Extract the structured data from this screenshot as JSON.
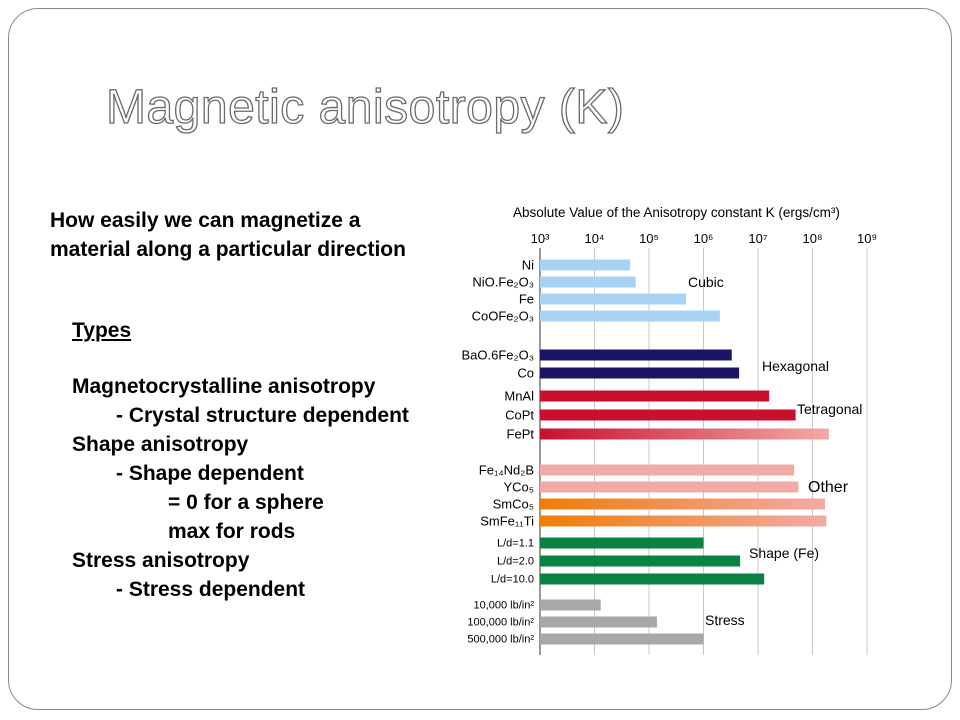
{
  "slide": {
    "title": "Magnetic anisotropy (K)",
    "intro_lines": [
      "How easily we can magnetize a",
      "material along a particular direction"
    ],
    "types_heading": "Types",
    "types": [
      {
        "name": "Magnetocrystalline anisotropy",
        "details": [
          "- Crystal structure dependent"
        ]
      },
      {
        "name": "Shape anisotropy",
        "details": [
          "- Shape dependent",
          "= 0 for a sphere",
          "max for rods"
        ]
      },
      {
        "name": "Stress anisotropy",
        "details": [
          "- Stress dependent"
        ]
      }
    ]
  },
  "chart_data": {
    "type": "bar",
    "orientation": "horizontal",
    "title": "Absolute Value of the Anisotropy constant K (ergs/cm³)",
    "x_scale": "log",
    "xlim": [
      1000,
      1000000000
    ],
    "x_ticks": [
      {
        "value": 1000,
        "label": "10³"
      },
      {
        "value": 10000,
        "label": "10⁴"
      },
      {
        "value": 100000,
        "label": "10⁵"
      },
      {
        "value": 1000000,
        "label": "10⁶"
      },
      {
        "value": 10000000,
        "label": "10⁷"
      },
      {
        "value": 100000000,
        "label": "10⁸"
      },
      {
        "value": 1000000000,
        "label": "10⁹"
      }
    ],
    "grid": true,
    "groups": [
      {
        "name": "Cubic",
        "color": "#a9d3f5",
        "items": [
          {
            "label": "Ni",
            "value": 45000
          },
          {
            "label": "NiO.Fe₂O₃",
            "value": 57000
          },
          {
            "label": "Fe",
            "value": 480000
          },
          {
            "label": "CoOFe₂O₃",
            "value": 2000000
          }
        ]
      },
      {
        "name": "Hexagonal",
        "color": "#1c1566",
        "items": [
          {
            "label": "BaO.6Fe₂O₃",
            "value": 3300000
          },
          {
            "label": "Co",
            "value": 4500000
          }
        ]
      },
      {
        "name": "Tetragonal",
        "color": "#c8102e",
        "items": [
          {
            "label": "MnAl",
            "value": 16000000
          },
          {
            "label": "CoPt",
            "value": 49000000
          },
          {
            "label": "FePt",
            "value": 200000000
          }
        ]
      },
      {
        "name": "Other",
        "color": "#f2aaa5",
        "items": [
          {
            "label": "Fe₁₄Nd₂B",
            "value": 46000000
          },
          {
            "label": "YCo₅",
            "value": 55000000
          },
          {
            "label": "SmCo₅",
            "value": 170000000
          },
          {
            "label": "SmFe₁₁Ti",
            "value": 180000000
          }
        ]
      },
      {
        "name": "Shape (Fe)",
        "color": "#0a8244",
        "items": [
          {
            "label": "L/d=1.1",
            "value": 1000000
          },
          {
            "label": "L/d=2.0",
            "value": 4700000
          },
          {
            "label": "L/d=10.0",
            "value": 13000000
          }
        ]
      },
      {
        "name": "Stress",
        "color": "#a8a8a8",
        "items": [
          {
            "label": "10,000 lb/in²",
            "value": 13000
          },
          {
            "label": "100,000 lb/in²",
            "value": 140000
          },
          {
            "label": "500,000 lb/in²",
            "value": 1000000
          }
        ]
      }
    ],
    "gradient_bars": [
      {
        "label": "FePt",
        "colors": [
          "#c8102e",
          "#f2aaa5"
        ]
      },
      {
        "label": "SmCo₅",
        "colors": [
          "#ef7d0a",
          "#f2aaa5"
        ]
      },
      {
        "label": "SmFe₁₁Ti",
        "colors": [
          "#ef7d0a",
          "#f2aaa5"
        ]
      }
    ]
  }
}
